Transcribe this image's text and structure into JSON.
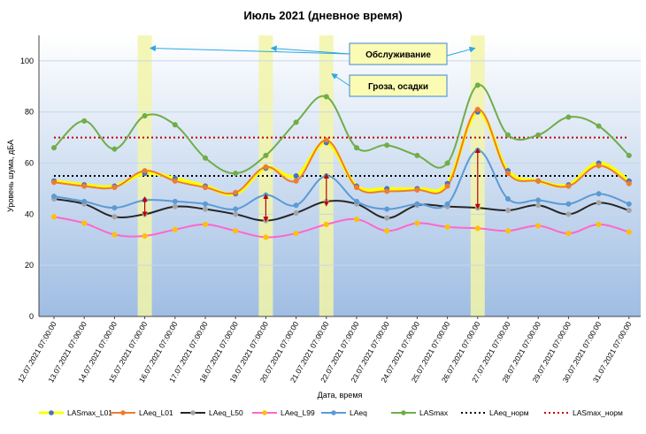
{
  "chart_data": {
    "type": "line",
    "title": "Июль 2021 (дневное время)",
    "xlabel": "Дата, время",
    "ylabel": "Уровень шума, дБА",
    "ylim": [
      0,
      110
    ],
    "yticks": [
      0,
      20,
      40,
      60,
      80,
      100
    ],
    "grid": "horizontal",
    "legend_position": "bottom",
    "categories": [
      "12.07.2021 07:00:00",
      "13.07.2021 07:00:00",
      "14.07.2021 07:00:00",
      "15.07.2021 07:00:00",
      "16.07.2021 07:00:00",
      "17.07.2021 07:00:00",
      "18.07.2021 07:00:00",
      "19.07.2021 07:00:00",
      "20.07.2021 07:00:00",
      "21.07.2021 07:00:00",
      "22.07.2021 07:00:00",
      "23.07.2021 07:00:00",
      "24.07.2021 07:00:00",
      "25.07.2021 07:00:00",
      "26.07.2021 07:00:00",
      "27.07.2021 07:00:00",
      "28.07.2021 07:00:00",
      "29.07.2021 07:00:00",
      "30.07.2021 07:00:00",
      "31.07.2021 07:00:00"
    ],
    "series": [
      {
        "name": "LASmax_L01",
        "color": "#ffff00",
        "marker": "#4472c4",
        "marker_shape": "circle",
        "width": 3,
        "dash": "",
        "values": [
          53,
          51.5,
          51,
          56,
          54,
          51,
          48,
          58,
          55,
          68,
          51,
          50,
          50,
          52,
          80,
          57,
          53,
          51.5,
          60,
          53
        ]
      },
      {
        "name": "LAeq_L01",
        "color": "#ed7d31",
        "marker": "#ed7d31",
        "marker_shape": "circle",
        "width": 2,
        "dash": "",
        "values": [
          52.5,
          51,
          50.5,
          57,
          53,
          50.5,
          48.5,
          58.5,
          53,
          69,
          50.5,
          49,
          49.5,
          51,
          81,
          56,
          53,
          51,
          59,
          52
        ]
      },
      {
        "name": "LAeq_L50",
        "color": "#262626",
        "marker": "#a5a5a5",
        "marker_shape": "circle",
        "width": 2,
        "dash": "",
        "values": [
          46,
          44,
          39,
          40,
          43,
          42,
          40,
          37.5,
          40.5,
          45,
          44,
          38.5,
          43.5,
          43,
          42.5,
          41.5,
          43.5,
          40,
          44.5,
          41.5
        ]
      },
      {
        "name": "LAeq_L99",
        "color": "#ff66cc",
        "marker": "#ffc000",
        "marker_shape": "circle",
        "width": 2,
        "dash": "",
        "values": [
          39,
          36.5,
          32,
          31.5,
          34,
          36,
          33.5,
          31,
          32.5,
          36,
          38,
          33.5,
          36.5,
          35,
          34.5,
          33.5,
          35.5,
          32.5,
          36,
          33
        ]
      },
      {
        "name": "LAeq",
        "color": "#5b9bd5",
        "marker": "#5b9bd5",
        "marker_shape": "circle",
        "width": 2,
        "dash": "",
        "values": [
          47,
          45,
          42.5,
          45.5,
          45,
          44,
          42,
          47.5,
          43.5,
          55,
          45,
          42,
          44,
          44,
          65,
          46,
          45.5,
          44,
          48,
          44
        ]
      },
      {
        "name": "LASmax",
        "color": "#70ad47",
        "marker": "#70ad47",
        "marker_shape": "circle",
        "width": 2,
        "dash": "",
        "values": [
          66,
          76.5,
          65.5,
          78.5,
          75,
          62,
          56,
          63,
          76,
          86,
          66,
          67,
          63,
          60,
          90.5,
          71,
          71,
          78,
          74.5,
          63
        ]
      },
      {
        "name": "LAeq_норм",
        "color": "#000000",
        "marker": "",
        "marker_shape": "none",
        "width": 2,
        "dash": "2,3",
        "values": [
          55,
          55,
          55,
          55,
          55,
          55,
          55,
          55,
          55,
          55,
          55,
          55,
          55,
          55,
          55,
          55,
          55,
          55,
          55,
          55
        ]
      },
      {
        "name": "LASmax_норм",
        "color": "#c00000",
        "marker": "",
        "marker_shape": "none",
        "width": 2,
        "dash": "2,3",
        "values": [
          70,
          70,
          70,
          70,
          70,
          70,
          70,
          70,
          70,
          70,
          70,
          70,
          70,
          70,
          70,
          70,
          70,
          70,
          70,
          70
        ]
      }
    ],
    "highlight_bands": [
      {
        "category_index": 3,
        "color": "#f2f5a8"
      },
      {
        "category_index": 7,
        "color": "#f2f5a8"
      },
      {
        "category_index": 9,
        "color": "#f2f5a8"
      },
      {
        "category_index": 14,
        "color": "#f2f5a8"
      }
    ],
    "difference_arrows": [
      {
        "category_index": 3,
        "from": 40,
        "to": 46
      },
      {
        "category_index": 7,
        "from": 38,
        "to": 47
      },
      {
        "category_index": 9,
        "from": 44,
        "to": 55
      },
      {
        "category_index": 14,
        "from": 43,
        "to": 65
      }
    ],
    "annotations": [
      {
        "text": "Обслуживание",
        "targets": [
          3,
          7,
          14
        ],
        "target_value": 105
      },
      {
        "text": "Гроза, осадки",
        "targets": [
          9
        ],
        "target_value": 95
      }
    ]
  },
  "colors": {
    "plot_top": "#ffffff",
    "plot_bottom": "#9fbde3",
    "annotation_fill": "#fbfbb3",
    "annotation_border": "#5b9bd5",
    "annotation_arrow": "#2ea7e0",
    "diff_arrow": "#c00000"
  }
}
